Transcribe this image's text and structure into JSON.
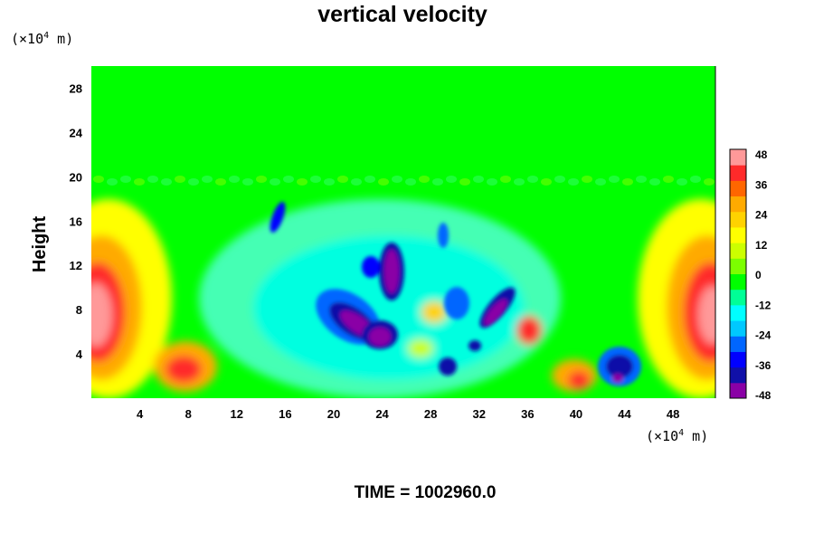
{
  "chart_data": {
    "type": "heatmap",
    "title": "vertical velocity",
    "ylabel": "Height",
    "xlabel": "",
    "x_unit": {
      "prefix": "(×10",
      "exp": "4",
      "suffix": " m)"
    },
    "y_unit": {
      "prefix": "(×10",
      "exp": "4",
      "suffix": " m)"
    },
    "xlim": [
      0,
      51.5
    ],
    "ylim": [
      0,
      30
    ],
    "x_ticks": [
      "4",
      "8",
      "12",
      "16",
      "20",
      "24",
      "28",
      "32",
      "36",
      "40",
      "44",
      "48"
    ],
    "y_ticks": [
      "4",
      "8",
      "12",
      "16",
      "20",
      "24",
      "28"
    ],
    "colorbar": {
      "ticks": [
        "48",
        "36",
        "24",
        "12",
        "0",
        "-12",
        "-24",
        "-36",
        "-48"
      ],
      "range": [
        -48,
        48
      ],
      "colors": [
        "#8a00a6",
        "#1010a8",
        "#0000ff",
        "#0066ff",
        "#00c8ff",
        "#00ffff",
        "#00ff96",
        "#00ff00",
        "#7cff00",
        "#ccff00",
        "#ffff00",
        "#ffd200",
        "#ffaa00",
        "#ff6600",
        "#ff2a2a",
        "#ff9999"
      ]
    },
    "features": [
      {
        "kind": "updraft",
        "x": 1.5,
        "y": 7,
        "peak": 48
      },
      {
        "kind": "updraft",
        "x": 50,
        "y": 7,
        "peak": 48
      },
      {
        "kind": "updraft",
        "x": 7.5,
        "y": 2.5,
        "peak": 40
      },
      {
        "kind": "updraft",
        "x": 35.5,
        "y": 6,
        "peak": 36
      },
      {
        "kind": "updraft",
        "x": 40,
        "y": 1.5,
        "peak": 36
      },
      {
        "kind": "downdraft",
        "x": 15,
        "y": 16,
        "peak": -36
      },
      {
        "kind": "downdraft",
        "x": 22,
        "y": 6,
        "peak": -48
      },
      {
        "kind": "downdraft",
        "x": 25,
        "y": 11,
        "peak": -48
      },
      {
        "kind": "downdraft",
        "x": 33,
        "y": 7,
        "peak": -48
      },
      {
        "kind": "downdraft",
        "x": 43,
        "y": 3,
        "peak": -40
      }
    ]
  },
  "footer": {
    "time_label": "TIME = 1002960.0"
  }
}
